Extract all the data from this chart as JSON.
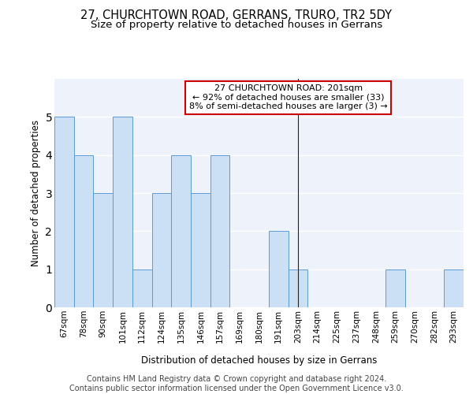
{
  "title_line1": "27, CHURCHTOWN ROAD, GERRANS, TRURO, TR2 5DY",
  "title_line2": "Size of property relative to detached houses in Gerrans",
  "xlabel": "Distribution of detached houses by size in Gerrans",
  "ylabel": "Number of detached properties",
  "categories": [
    "67sqm",
    "78sqm",
    "90sqm",
    "101sqm",
    "112sqm",
    "124sqm",
    "135sqm",
    "146sqm",
    "157sqm",
    "169sqm",
    "180sqm",
    "191sqm",
    "203sqm",
    "214sqm",
    "225sqm",
    "237sqm",
    "248sqm",
    "259sqm",
    "270sqm",
    "282sqm",
    "293sqm"
  ],
  "values": [
    5,
    4,
    3,
    5,
    1,
    3,
    4,
    3,
    4,
    0,
    0,
    2,
    1,
    0,
    0,
    0,
    0,
    1,
    0,
    0,
    1
  ],
  "bar_color": "#cce0f5",
  "bar_edge_color": "#5b9bd5",
  "vline_x": 12,
  "annotation_text": "27 CHURCHTOWN ROAD: 201sqm\n← 92% of detached houses are smaller (33)\n8% of semi-detached houses are larger (3) →",
  "annotation_box_color": "#ffffff",
  "annotation_box_edge": "#cc0000",
  "ylim": [
    0,
    6
  ],
  "yticks": [
    0,
    1,
    2,
    3,
    4,
    5
  ],
  "background_color": "#eef2fb",
  "footer_text": "Contains HM Land Registry data © Crown copyright and database right 2024.\nContains public sector information licensed under the Open Government Licence v3.0.",
  "grid_color": "#ffffff",
  "title_fontsize": 10.5,
  "subtitle_fontsize": 9.5,
  "axis_label_fontsize": 8.5,
  "tick_fontsize": 7.5,
  "annotation_fontsize": 8,
  "footer_fontsize": 7
}
